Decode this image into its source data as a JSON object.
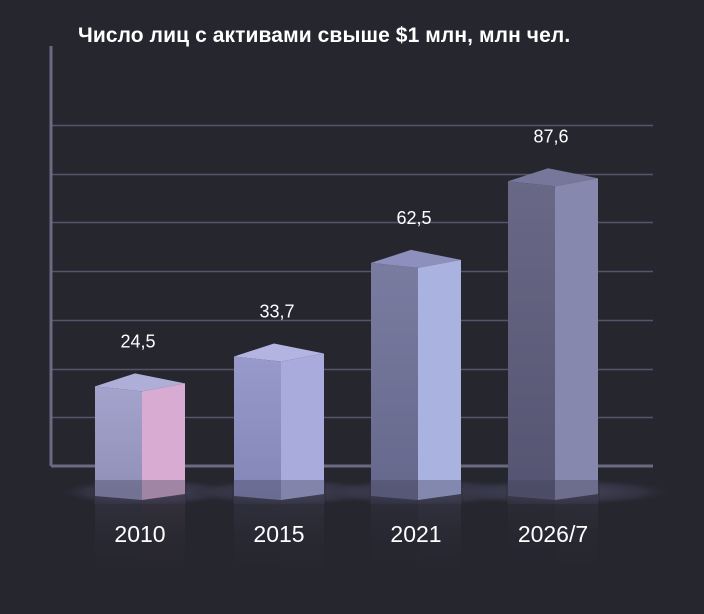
{
  "chart_data": {
    "type": "bar",
    "title": "Число лиц с активами свыше $1 млн, млн чел.",
    "categories": [
      "2010",
      "2015",
      "2021",
      "2026/7"
    ],
    "values": [
      24.5,
      33.7,
      62.5,
      87.6
    ],
    "value_labels": [
      "24,5",
      "33,7",
      "62,5",
      "87,6"
    ],
    "xlabel": "",
    "ylabel": "",
    "ylim": [
      0,
      120
    ],
    "grid": true,
    "legend": "none",
    "colors": {
      "background": "#26262f",
      "axis": "#6a6a80",
      "grid": "#55556a",
      "text": "#ffffff",
      "bars": [
        {
          "front": "#9c9bc8",
          "side": "#d8acd2",
          "top": "#aeaed8"
        },
        {
          "front": "#8f91c6",
          "side": "#a9abdc",
          "top": "#b3b4e2"
        },
        {
          "front": "#6e7098",
          "side": "#aab2e0",
          "top": "#8d8fbc"
        },
        {
          "front": "#5c5c7c",
          "side": "#8788ae",
          "top": "#77779c"
        }
      ]
    }
  }
}
